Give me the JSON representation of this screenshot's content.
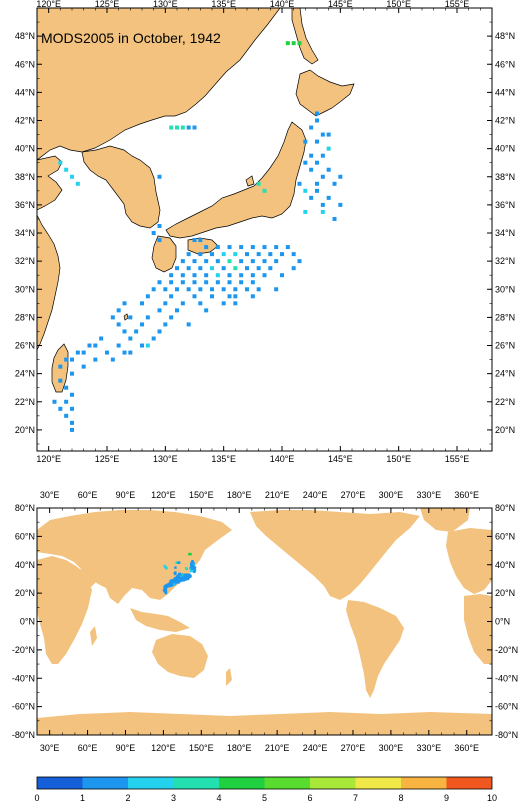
{
  "title": "MODS2005 in October, 1942",
  "colors": {
    "land": "#f2c27e",
    "ocean": "#ffffff",
    "scale": [
      "#1560d8",
      "#1c96ee",
      "#24d2ee",
      "#22e0b0",
      "#20d040",
      "#58dc30",
      "#a8e838",
      "#f0e848",
      "#f8b440",
      "#f05820"
    ]
  },
  "regional_map": {
    "lon_range": [
      119,
      158
    ],
    "lat_range": [
      18.5,
      50
    ],
    "top_ticks": [
      "120°E",
      "125°E",
      "130°E",
      "135°E",
      "140°E",
      "145°E",
      "150°E",
      "155°E"
    ],
    "bottom_ticks": [
      "120°E",
      "125°E",
      "130°E",
      "135°E",
      "140°E",
      "145°E",
      "150°E",
      "155°E"
    ],
    "left_ticks": [
      "48°N",
      "46°N",
      "44°N",
      "42°N",
      "40°N",
      "38°N",
      "36°N",
      "34°N",
      "32°N",
      "30°N",
      "28°N",
      "26°N",
      "24°N",
      "22°N",
      "20°N"
    ],
    "right_ticks": [
      "48°N",
      "46°N",
      "44°N",
      "42°N",
      "40°N",
      "38°N",
      "36°N",
      "34°N",
      "32°N",
      "30°N",
      "28°N",
      "26°N",
      "24°N",
      "22°N",
      "20°N"
    ]
  },
  "global_map": {
    "lon_range": [
      20,
      380
    ],
    "lat_range": [
      -80,
      80
    ],
    "top_ticks": [
      "30°E",
      "60°E",
      "90°E",
      "120°E",
      "150°E",
      "180°E",
      "210°E",
      "240°E",
      "270°E",
      "300°E",
      "330°E",
      "360°E"
    ],
    "bottom_ticks": [
      "30°E",
      "60°E",
      "90°E",
      "120°E",
      "150°E",
      "180°E",
      "210°E",
      "240°E",
      "270°E",
      "300°E",
      "330°E",
      "360°E"
    ],
    "left_ticks": [
      "80°N",
      "60°N",
      "40°N",
      "20°N",
      "0°N",
      "-20°N",
      "-40°N",
      "-60°N",
      "-80°N"
    ],
    "right_ticks": [
      "80°N",
      "60°N",
      "40°N",
      "20°N",
      "0°N",
      "-20°N",
      "-40°N",
      "-60°N",
      "-80°N"
    ]
  },
  "colorbar": {
    "labels": [
      "0",
      "1",
      "2",
      "3",
      "4",
      "5",
      "6",
      "7",
      "8",
      "9",
      "10"
    ]
  },
  "chart_data": {
    "type": "heatmap",
    "title": "MODS2005 in October, 1942",
    "value_range": [
      0,
      10
    ],
    "observations": [
      [
        140.5,
        47.5,
        4
      ],
      [
        141,
        47.5,
        4
      ],
      [
        141.5,
        47.5,
        4
      ],
      [
        130.5,
        41.5,
        3
      ],
      [
        131,
        41.5,
        3
      ],
      [
        131.5,
        41.5,
        3
      ],
      [
        132,
        41.5,
        1
      ],
      [
        132.5,
        41.5,
        1
      ],
      [
        121,
        39,
        2
      ],
      [
        121.5,
        38.5,
        2
      ],
      [
        122,
        38,
        2
      ],
      [
        122.5,
        37.5,
        2
      ],
      [
        129.5,
        38,
        1
      ],
      [
        143,
        42.5,
        1
      ],
      [
        143,
        42,
        1
      ],
      [
        142.5,
        41.5,
        1
      ],
      [
        143.5,
        41,
        1
      ],
      [
        144,
        41,
        1
      ],
      [
        142,
        40.5,
        1
      ],
      [
        143,
        40.5,
        1
      ],
      [
        144,
        40,
        2
      ],
      [
        142.5,
        39.5,
        1
      ],
      [
        143.5,
        39.5,
        1
      ],
      [
        142,
        39,
        1
      ],
      [
        143,
        39,
        1
      ],
      [
        144,
        38.5,
        1
      ],
      [
        142.5,
        38.5,
        1
      ],
      [
        143.5,
        38,
        1
      ],
      [
        145,
        38,
        1
      ],
      [
        141.5,
        37.5,
        1
      ],
      [
        143,
        37.5,
        1
      ],
      [
        144.5,
        37.5,
        1
      ],
      [
        142,
        37,
        2
      ],
      [
        143,
        37,
        1
      ],
      [
        144,
        36.5,
        1
      ],
      [
        142.5,
        36.5,
        1
      ],
      [
        143.5,
        36,
        1
      ],
      [
        145,
        36,
        1
      ],
      [
        142,
        35.5,
        2
      ],
      [
        143.5,
        35.5,
        2
      ],
      [
        144.5,
        35,
        1
      ],
      [
        138,
        37.5,
        3
      ],
      [
        138.5,
        37,
        3
      ],
      [
        129.5,
        34.5,
        1
      ],
      [
        129,
        34,
        1
      ],
      [
        129.5,
        33.5,
        1
      ],
      [
        132.5,
        33.5,
        1
      ],
      [
        133,
        33.5,
        1
      ],
      [
        133.5,
        33,
        1
      ],
      [
        134.5,
        33,
        1
      ],
      [
        135.5,
        33,
        1
      ],
      [
        136.5,
        33,
        1
      ],
      [
        137.5,
        33,
        1
      ],
      [
        138.5,
        33,
        1
      ],
      [
        139.5,
        33,
        1
      ],
      [
        140.5,
        33,
        1
      ],
      [
        141,
        32.5,
        1
      ],
      [
        141.5,
        32,
        1
      ],
      [
        141,
        31.5,
        1
      ],
      [
        132,
        32.5,
        1
      ],
      [
        133,
        32.5,
        1
      ],
      [
        134,
        32.5,
        1
      ],
      [
        135,
        32.5,
        2
      ],
      [
        136,
        32.5,
        2
      ],
      [
        137,
        32.5,
        1
      ],
      [
        138,
        32.5,
        1
      ],
      [
        139,
        32.5,
        1
      ],
      [
        140,
        32.5,
        1
      ],
      [
        131.5,
        32,
        1
      ],
      [
        132.5,
        32,
        1
      ],
      [
        133.5,
        32,
        1
      ],
      [
        134.5,
        32,
        1
      ],
      [
        135.5,
        32,
        3
      ],
      [
        136.5,
        32,
        1
      ],
      [
        137.5,
        32,
        1
      ],
      [
        138.5,
        32,
        1
      ],
      [
        139.5,
        32,
        1
      ],
      [
        131,
        31.5,
        1
      ],
      [
        132,
        31.5,
        1
      ],
      [
        133,
        31.5,
        1
      ],
      [
        134,
        31.5,
        2
      ],
      [
        135,
        31.5,
        1
      ],
      [
        136,
        31.5,
        3
      ],
      [
        137,
        31.5,
        1
      ],
      [
        138,
        31.5,
        1
      ],
      [
        139,
        31.5,
        1
      ],
      [
        130.5,
        31,
        1
      ],
      [
        131.5,
        31,
        1
      ],
      [
        132.5,
        31,
        1
      ],
      [
        133.5,
        31,
        1
      ],
      [
        134.5,
        31,
        2
      ],
      [
        135.5,
        31,
        1
      ],
      [
        136.5,
        31,
        1
      ],
      [
        137.5,
        31,
        1
      ],
      [
        138.5,
        31,
        1
      ],
      [
        140,
        31,
        1
      ],
      [
        129.5,
        30.5,
        1
      ],
      [
        130.5,
        30.5,
        1
      ],
      [
        131.5,
        30.5,
        1
      ],
      [
        132.5,
        30.5,
        1
      ],
      [
        133.5,
        30.5,
        1
      ],
      [
        134.5,
        30.5,
        1
      ],
      [
        135.5,
        30.5,
        1
      ],
      [
        136.5,
        30.5,
        1
      ],
      [
        137.5,
        30.5,
        1
      ],
      [
        129,
        30,
        1
      ],
      [
        130,
        30,
        1
      ],
      [
        131,
        30,
        1
      ],
      [
        132,
        30,
        1
      ],
      [
        133,
        30,
        1
      ],
      [
        134,
        30,
        1
      ],
      [
        135,
        30,
        1
      ],
      [
        136,
        30,
        1
      ],
      [
        137,
        30,
        1
      ],
      [
        138,
        30,
        1
      ],
      [
        139.5,
        30,
        1
      ],
      [
        128.5,
        29.5,
        1
      ],
      [
        130.5,
        29.5,
        1
      ],
      [
        132.5,
        29.5,
        1
      ],
      [
        134,
        29.5,
        1
      ],
      [
        135.5,
        29.5,
        1
      ],
      [
        136,
        29.5,
        1
      ],
      [
        137.5,
        29.5,
        1
      ],
      [
        126.5,
        29,
        1
      ],
      [
        128,
        29,
        1
      ],
      [
        130,
        29,
        1
      ],
      [
        131.5,
        29,
        1
      ],
      [
        133,
        29,
        1
      ],
      [
        135,
        29,
        1
      ],
      [
        136,
        29,
        1
      ],
      [
        126,
        28.5,
        1
      ],
      [
        129.5,
        28.5,
        1
      ],
      [
        131,
        28.5,
        1
      ],
      [
        133.5,
        28.5,
        1
      ],
      [
        125.5,
        28,
        1
      ],
      [
        127,
        28,
        1
      ],
      [
        128.5,
        28,
        1
      ],
      [
        130.5,
        28,
        1
      ],
      [
        126,
        27.5,
        1
      ],
      [
        128,
        27.5,
        1
      ],
      [
        130,
        27.5,
        1
      ],
      [
        132,
        27.5,
        1
      ],
      [
        126.5,
        27,
        1
      ],
      [
        127.5,
        27,
        1
      ],
      [
        129.5,
        27,
        1
      ],
      [
        124.5,
        26.5,
        1
      ],
      [
        127,
        26.5,
        1
      ],
      [
        129,
        26.5,
        1
      ],
      [
        123.5,
        26,
        1
      ],
      [
        124,
        26,
        1
      ],
      [
        126,
        26,
        1
      ],
      [
        128,
        26,
        1
      ],
      [
        128.5,
        26,
        2
      ],
      [
        122.5,
        25.5,
        1
      ],
      [
        123,
        25.5,
        1
      ],
      [
        125,
        25.5,
        1
      ],
      [
        126.5,
        25.5,
        1
      ],
      [
        127,
        25.5,
        1
      ],
      [
        121.5,
        25,
        1
      ],
      [
        122,
        25,
        1
      ],
      [
        124,
        25,
        1
      ],
      [
        125.5,
        25,
        1
      ],
      [
        121,
        24.5,
        1
      ],
      [
        123,
        24.5,
        1
      ],
      [
        122,
        24,
        1
      ],
      [
        121,
        23.5,
        1
      ],
      [
        121.5,
        23,
        1
      ],
      [
        122,
        22.5,
        1
      ],
      [
        121.5,
        22,
        1
      ],
      [
        120.5,
        22,
        1
      ],
      [
        121,
        21.5,
        1
      ],
      [
        122,
        21.5,
        1
      ],
      [
        121.5,
        21,
        1
      ],
      [
        122,
        20.5,
        1
      ],
      [
        122,
        20,
        1
      ]
    ]
  }
}
